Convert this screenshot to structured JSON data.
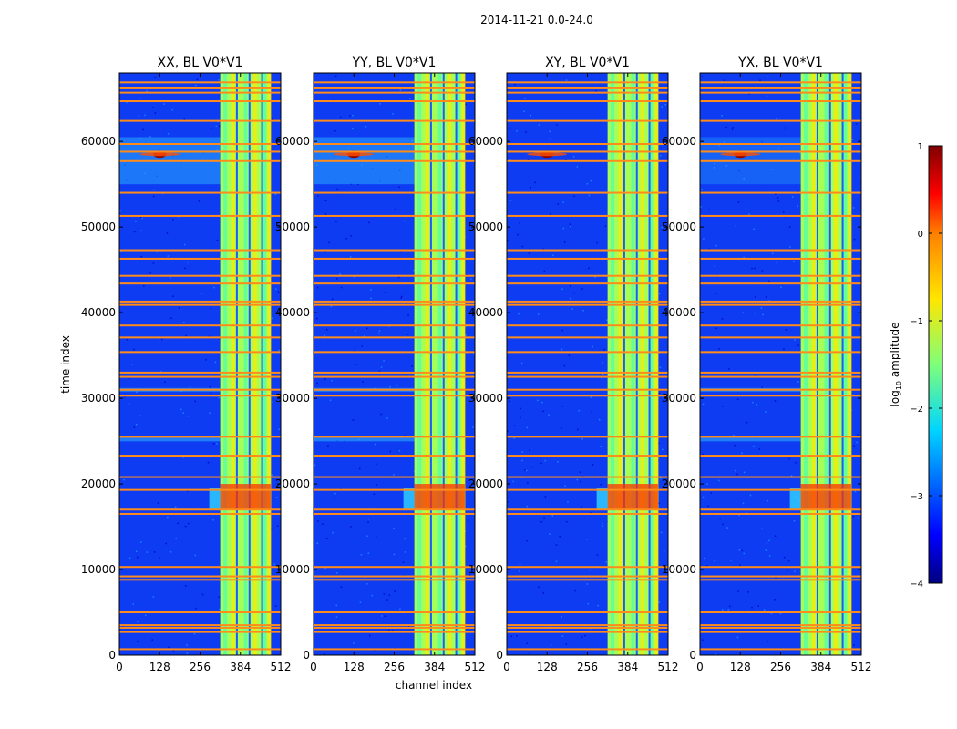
{
  "chart_data": {
    "type": "heatmap",
    "suptitle": "2014-11-21 0.0-24.0",
    "xlabel": "channel index",
    "ylabel": "time index",
    "xlim": [
      0,
      512
    ],
    "ylim": [
      0,
      68000
    ],
    "xticks": [
      0,
      128,
      256,
      384,
      512
    ],
    "yticks": [
      0,
      10000,
      20000,
      30000,
      40000,
      50000,
      60000
    ],
    "panels": [
      {
        "title": "XX, BL V0*V1"
      },
      {
        "title": "YY, BL V0*V1"
      },
      {
        "title": "XY, BL V0*V1"
      },
      {
        "title": "YX, BL V0*V1"
      }
    ],
    "colorbar": {
      "label_main": "log",
      "label_sub": "10",
      "label_rest": " amplitude",
      "range": [
        -4,
        1
      ],
      "ticks": [
        "1",
        "0",
        "−1",
        "−2",
        "−3",
        "−4"
      ],
      "colormap": "jet"
    },
    "flagged_time_rows": [
      700,
      2700,
      3200,
      3500,
      5000,
      8800,
      9200,
      10300,
      16500,
      17000,
      19300,
      20800,
      23300,
      25500,
      30300,
      31000,
      32500,
      33000,
      35400,
      37100,
      38500,
      40900,
      41300,
      43400,
      44300,
      46300,
      47300,
      51300,
      54000,
      57700,
      58800,
      59700,
      62400,
      64700,
      65700,
      66200,
      66900
    ],
    "bright_channel_band": [
      320,
      480
    ],
    "bright_event_times": [
      17000,
      20000
    ]
  }
}
